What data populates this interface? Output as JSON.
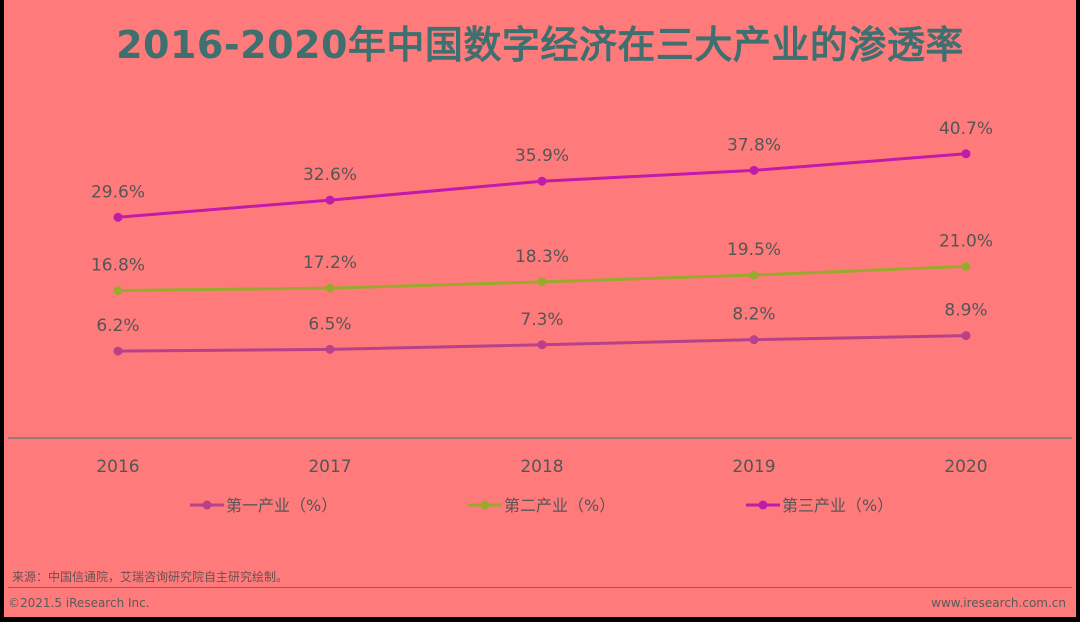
{
  "title": "2016-2020年中国数字经济在三大产业的渗透率",
  "source": "来源：中国信通院，艾瑞咨询研究院自主研究绘制。",
  "copyright": "©2021.5 iResearch Inc.",
  "website": "www.iresearch.com.cn",
  "chart_data": {
    "type": "line",
    "title": "2016-2020年中国数字经济在三大产业的渗透率",
    "xlabel": "",
    "ylabel": "",
    "x": [
      "2016",
      "2017",
      "2018",
      "2019",
      "2020"
    ],
    "series": [
      {
        "name": "第一产业（%）",
        "color": "#b8418a",
        "values": [
          6.2,
          6.5,
          7.3,
          8.2,
          8.9
        ],
        "labels": [
          "6.2%",
          "6.5%",
          "7.3%",
          "8.2%",
          "8.9%"
        ]
      },
      {
        "name": "第二产业（%）",
        "color": "#9aa82c",
        "values": [
          16.8,
          17.2,
          18.3,
          19.5,
          21.0
        ],
        "labels": [
          "16.8%",
          "17.2%",
          "18.3%",
          "19.5%",
          "21.0%"
        ]
      },
      {
        "name": "第三产业（%）",
        "color": "#c21bab",
        "values": [
          29.6,
          32.6,
          35.9,
          37.8,
          40.7
        ],
        "labels": [
          "29.6%",
          "32.6%",
          "35.9%",
          "37.8%",
          "40.7%"
        ]
      }
    ],
    "ylim": [
      -9,
      55
    ],
    "grid": false,
    "legend": "bottom"
  }
}
